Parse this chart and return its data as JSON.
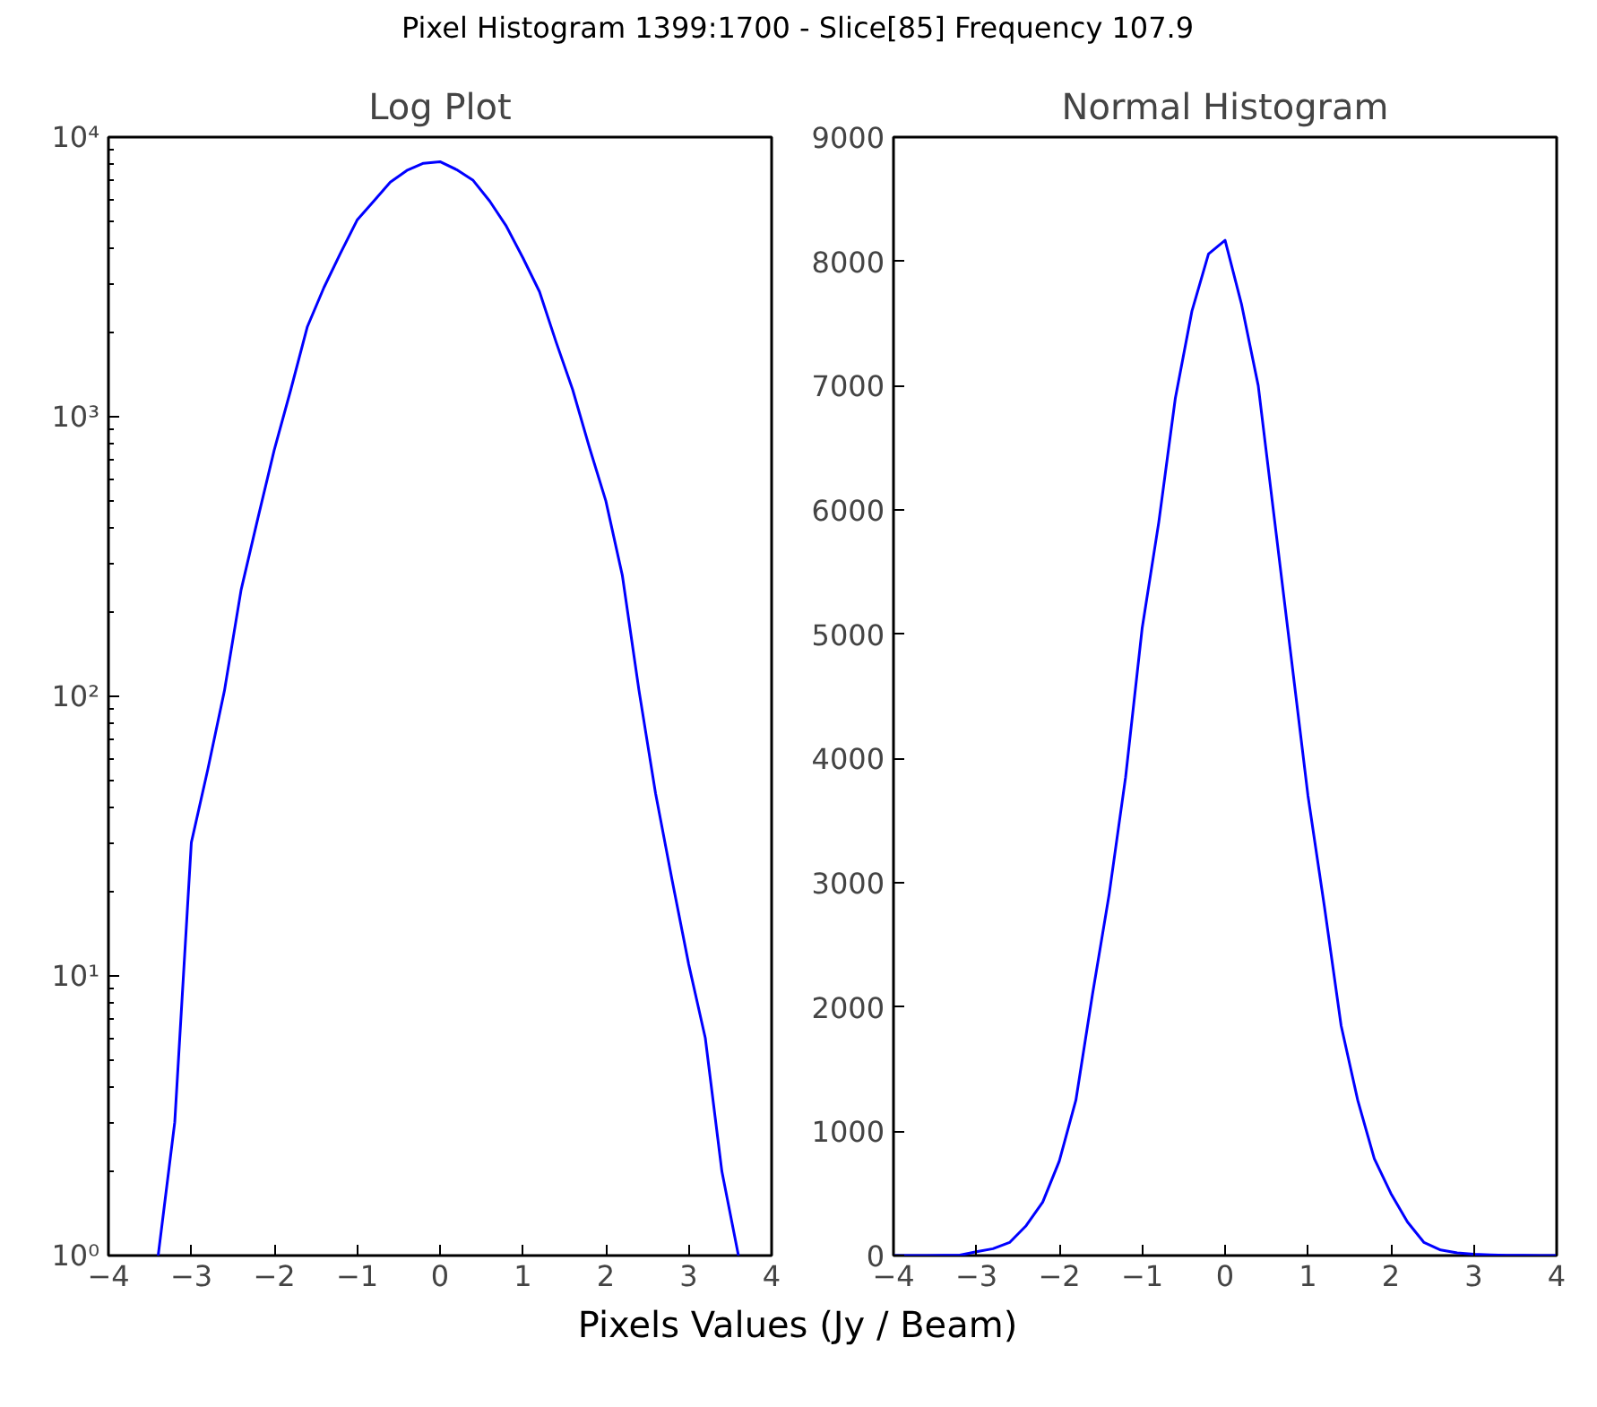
{
  "chart_data": [
    {
      "type": "line",
      "title": "Log Plot",
      "annotations": [
        "Pixel Histogram 1399:1700 - Slice[85] Frequency 107.9",
        "Pixels Values (Jy / Beam)"
      ],
      "log": "y",
      "grid": false,
      "marker": "none",
      "line_style": "solid",
      "xlim": [
        -4,
        4
      ],
      "xticks": [
        -4,
        -3,
        -2,
        -1,
        0,
        1,
        2,
        3,
        4
      ],
      "ylim": [
        1,
        10000
      ],
      "yticks": [
        {
          "value": 1,
          "label": "10⁰"
        },
        {
          "value": 10,
          "label": "10¹"
        },
        {
          "value": 100,
          "label": "10²"
        },
        {
          "value": 1000,
          "label": "10³"
        },
        {
          "value": 10000,
          "label": "10⁴"
        }
      ],
      "series": [
        {
          "color": "#0000ff",
          "x": [
            -3.4,
            -3.2,
            -3.0,
            -2.8,
            -2.6,
            -2.4,
            -2.2,
            -2.0,
            -1.8,
            -1.6,
            -1.4,
            -1.2,
            -1.0,
            -0.8,
            -0.6,
            -0.4,
            -0.2,
            0.0,
            0.2,
            0.4,
            0.6,
            0.8,
            1.0,
            1.2,
            1.4,
            1.6,
            1.8,
            2.0,
            2.2,
            2.4,
            2.6,
            2.8,
            3.0,
            3.2,
            3.4,
            3.6
          ],
          "values": [
            1,
            3,
            30,
            55,
            105,
            240,
            430,
            760,
            1250,
            2100,
            2900,
            3850,
            5050,
            5900,
            6900,
            7600,
            8060,
            8170,
            7650,
            7000,
            5900,
            4800,
            3700,
            2800,
            1850,
            1250,
            780,
            500,
            270,
            105,
            45,
            22,
            11,
            6,
            2,
            1
          ]
        }
      ]
    },
    {
      "type": "line",
      "title": "Normal Histogram",
      "grid": false,
      "marker": "none",
      "line_style": "solid",
      "xlim": [
        -4,
        4
      ],
      "xticks": [
        -4,
        -3,
        -2,
        -1,
        0,
        1,
        2,
        3,
        4
      ],
      "ylim": [
        0,
        9000
      ],
      "yticks": [
        0,
        1000,
        2000,
        3000,
        4000,
        5000,
        6000,
        7000,
        8000,
        9000
      ],
      "series": [
        {
          "color": "#0000ff",
          "x": [
            -4.0,
            -3.8,
            -3.6,
            -3.4,
            -3.2,
            -3.0,
            -2.8,
            -2.6,
            -2.4,
            -2.2,
            -2.0,
            -1.8,
            -1.6,
            -1.4,
            -1.2,
            -1.0,
            -0.8,
            -0.6,
            -0.4,
            -0.2,
            0.0,
            0.2,
            0.4,
            0.6,
            0.8,
            1.0,
            1.2,
            1.4,
            1.6,
            1.8,
            2.0,
            2.2,
            2.4,
            2.6,
            2.8,
            3.0,
            3.2,
            3.4,
            3.6,
            3.8,
            4.0
          ],
          "values": [
            0,
            0,
            0,
            1,
            3,
            30,
            55,
            105,
            240,
            430,
            760,
            1250,
            2100,
            2900,
            3850,
            5050,
            5900,
            6900,
            7600,
            8060,
            8170,
            7650,
            7000,
            5900,
            4800,
            3700,
            2800,
            1850,
            1250,
            780,
            500,
            270,
            105,
            45,
            22,
            11,
            6,
            2,
            1,
            0,
            0
          ]
        }
      ]
    }
  ]
}
